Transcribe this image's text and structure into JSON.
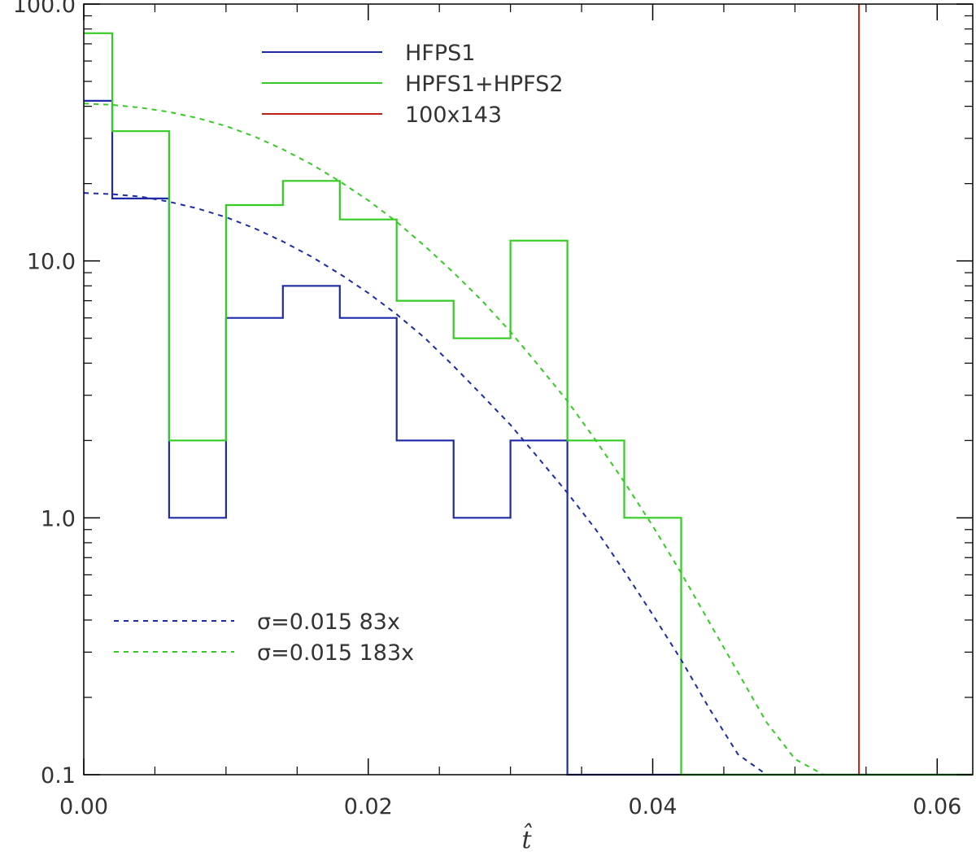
{
  "chart_data": {
    "type": "line",
    "xlabel": "t̂",
    "ylabel": "",
    "title": "",
    "xlim": [
      0.0,
      0.0625
    ],
    "ylim": [
      0.1,
      100.0
    ],
    "yscale": "log",
    "grid": false,
    "x_ticks": [
      "0.00",
      "0.02",
      "0.04",
      "0.06"
    ],
    "x_tick_values": [
      0.0,
      0.02,
      0.04,
      0.06
    ],
    "y_ticks": [
      "0.1",
      "1.0",
      "10.0",
      "100.0"
    ],
    "y_tick_values": [
      0.1,
      1.0,
      10.0,
      100.0
    ],
    "legend_top_position": "top-center",
    "legend_bottom_position": "bottom-left",
    "series": [
      {
        "name": "HFPS1",
        "kind": "histogram",
        "color": "#1f2aa8",
        "bin_edges": [
          0.0,
          0.002,
          0.006,
          0.01,
          0.014,
          0.018,
          0.022,
          0.026,
          0.03,
          0.034,
          0.038,
          0.042,
          0.0625
        ],
        "values": [
          42,
          17.5,
          1,
          6,
          8,
          6,
          2,
          1,
          2,
          0.1,
          0.1,
          0.1
        ]
      },
      {
        "name": "HPFS1+HPFS2",
        "kind": "histogram",
        "color": "#33cc22",
        "bin_edges": [
          0.0,
          0.002,
          0.006,
          0.01,
          0.014,
          0.018,
          0.022,
          0.026,
          0.03,
          0.034,
          0.038,
          0.042,
          0.0625
        ],
        "values": [
          77,
          32,
          2,
          16.5,
          20.5,
          14.5,
          7,
          5,
          12,
          2,
          1,
          0.1
        ]
      },
      {
        "name": "100x143",
        "kind": "vline",
        "color": "#bb2211",
        "x": 0.0545
      },
      {
        "name": "σ=0.015 83x",
        "kind": "dashed-curve",
        "color": "#1f2aa8",
        "x": [
          0.0,
          0.002,
          0.004,
          0.006,
          0.008,
          0.01,
          0.012,
          0.014,
          0.016,
          0.018,
          0.02,
          0.022,
          0.024,
          0.026,
          0.028,
          0.03,
          0.032,
          0.034,
          0.036,
          0.038,
          0.04,
          0.042,
          0.044,
          0.046,
          0.048
        ],
        "values": [
          18.4,
          18.2,
          17.8,
          17.0,
          16.0,
          14.8,
          13.4,
          11.9,
          10.4,
          8.9,
          7.5,
          6.2,
          5.0,
          3.9,
          3.0,
          2.3,
          1.7,
          1.25,
          0.9,
          0.62,
          0.42,
          0.28,
          0.18,
          0.12,
          0.1
        ]
      },
      {
        "name": "σ=0.015 183x",
        "kind": "dashed-curve",
        "color": "#33cc22",
        "x": [
          0.0,
          0.002,
          0.004,
          0.006,
          0.008,
          0.01,
          0.012,
          0.014,
          0.016,
          0.018,
          0.02,
          0.022,
          0.024,
          0.026,
          0.028,
          0.03,
          0.032,
          0.034,
          0.036,
          0.038,
          0.04,
          0.042,
          0.044,
          0.046,
          0.048,
          0.05,
          0.052
        ],
        "values": [
          41,
          40.5,
          39.5,
          38,
          36,
          33.5,
          30.5,
          27.2,
          23.8,
          20.4,
          17.2,
          14.2,
          11.4,
          9.0,
          7.0,
          5.3,
          3.9,
          2.85,
          2.0,
          1.38,
          0.93,
          0.61,
          0.39,
          0.25,
          0.16,
          0.115,
          0.1
        ]
      }
    ],
    "legend_top": [
      {
        "label": "HFPS1",
        "color": "#1f2aa8",
        "style": "solid"
      },
      {
        "label": "HPFS1+HPFS2",
        "color": "#33cc22",
        "style": "solid"
      },
      {
        "label": "100x143",
        "color": "#bb2211",
        "style": "solid"
      }
    ],
    "legend_bottom": [
      {
        "label": "σ=0.015  83x",
        "color": "#1f2aa8",
        "style": "dashed"
      },
      {
        "label": "σ=0.015  183x",
        "color": "#33cc22",
        "style": "dashed"
      }
    ]
  }
}
